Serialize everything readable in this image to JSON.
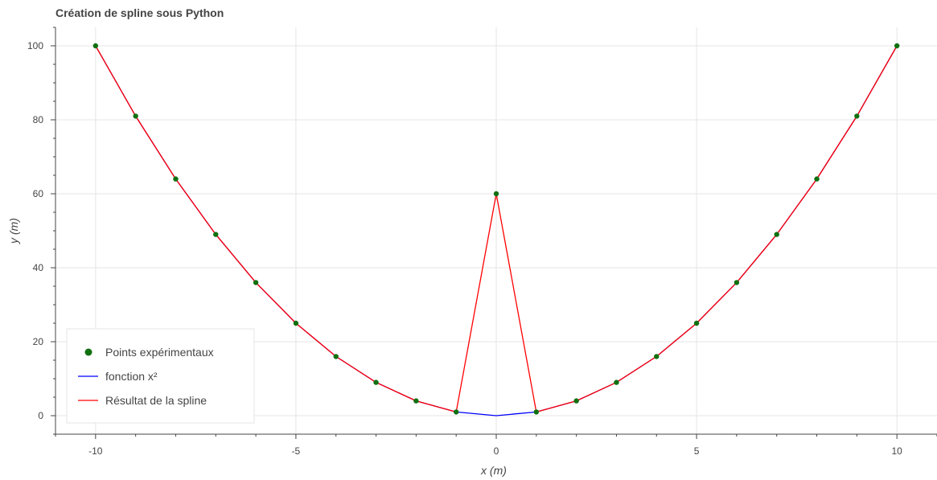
{
  "chart_data": {
    "type": "line",
    "title": "Création de spline sous Python",
    "xlabel": "x (m)",
    "ylabel": "y (m)",
    "xlim": [
      -11,
      11
    ],
    "ylim": [
      -5,
      105
    ],
    "xticks": [
      -10,
      -5,
      0,
      5,
      10
    ],
    "yticks": [
      0,
      20,
      40,
      60,
      80,
      100
    ],
    "grid": true,
    "legend_position": "bottom-left",
    "series": [
      {
        "name": "Points expérimentaux",
        "kind": "scatter",
        "color": "#107010",
        "x": [
          -10,
          -9,
          -8,
          -7,
          -6,
          -5,
          -4,
          -3,
          -2,
          -1,
          0,
          1,
          2,
          3,
          4,
          5,
          6,
          7,
          8,
          9,
          10
        ],
        "y": [
          100,
          81,
          64,
          49,
          36,
          25,
          16,
          9,
          4,
          1,
          60,
          1,
          4,
          9,
          16,
          25,
          36,
          49,
          64,
          81,
          100
        ]
      },
      {
        "name": "fonction x²",
        "kind": "line",
        "color": "#0000ff",
        "x": [
          -10,
          -9,
          -8,
          -7,
          -6,
          -5,
          -4,
          -3,
          -2,
          -1,
          0,
          1,
          2,
          3,
          4,
          5,
          6,
          7,
          8,
          9,
          10
        ],
        "y": [
          100,
          81,
          64,
          49,
          36,
          25,
          16,
          9,
          4,
          1,
          0,
          1,
          4,
          9,
          16,
          25,
          36,
          49,
          64,
          81,
          100
        ]
      },
      {
        "name": "Résultat de la spline",
        "kind": "line",
        "color": "#ff0000",
        "x": [
          -10,
          -9,
          -8,
          -7,
          -6,
          -5,
          -4,
          -3,
          -2,
          -1,
          0,
          1,
          2,
          3,
          4,
          5,
          6,
          7,
          8,
          9,
          10
        ],
        "y": [
          100,
          81,
          64,
          49,
          36,
          25,
          16,
          9,
          4,
          1,
          60,
          1,
          4,
          9,
          16,
          25,
          36,
          49,
          64,
          81,
          100
        ]
      }
    ]
  }
}
